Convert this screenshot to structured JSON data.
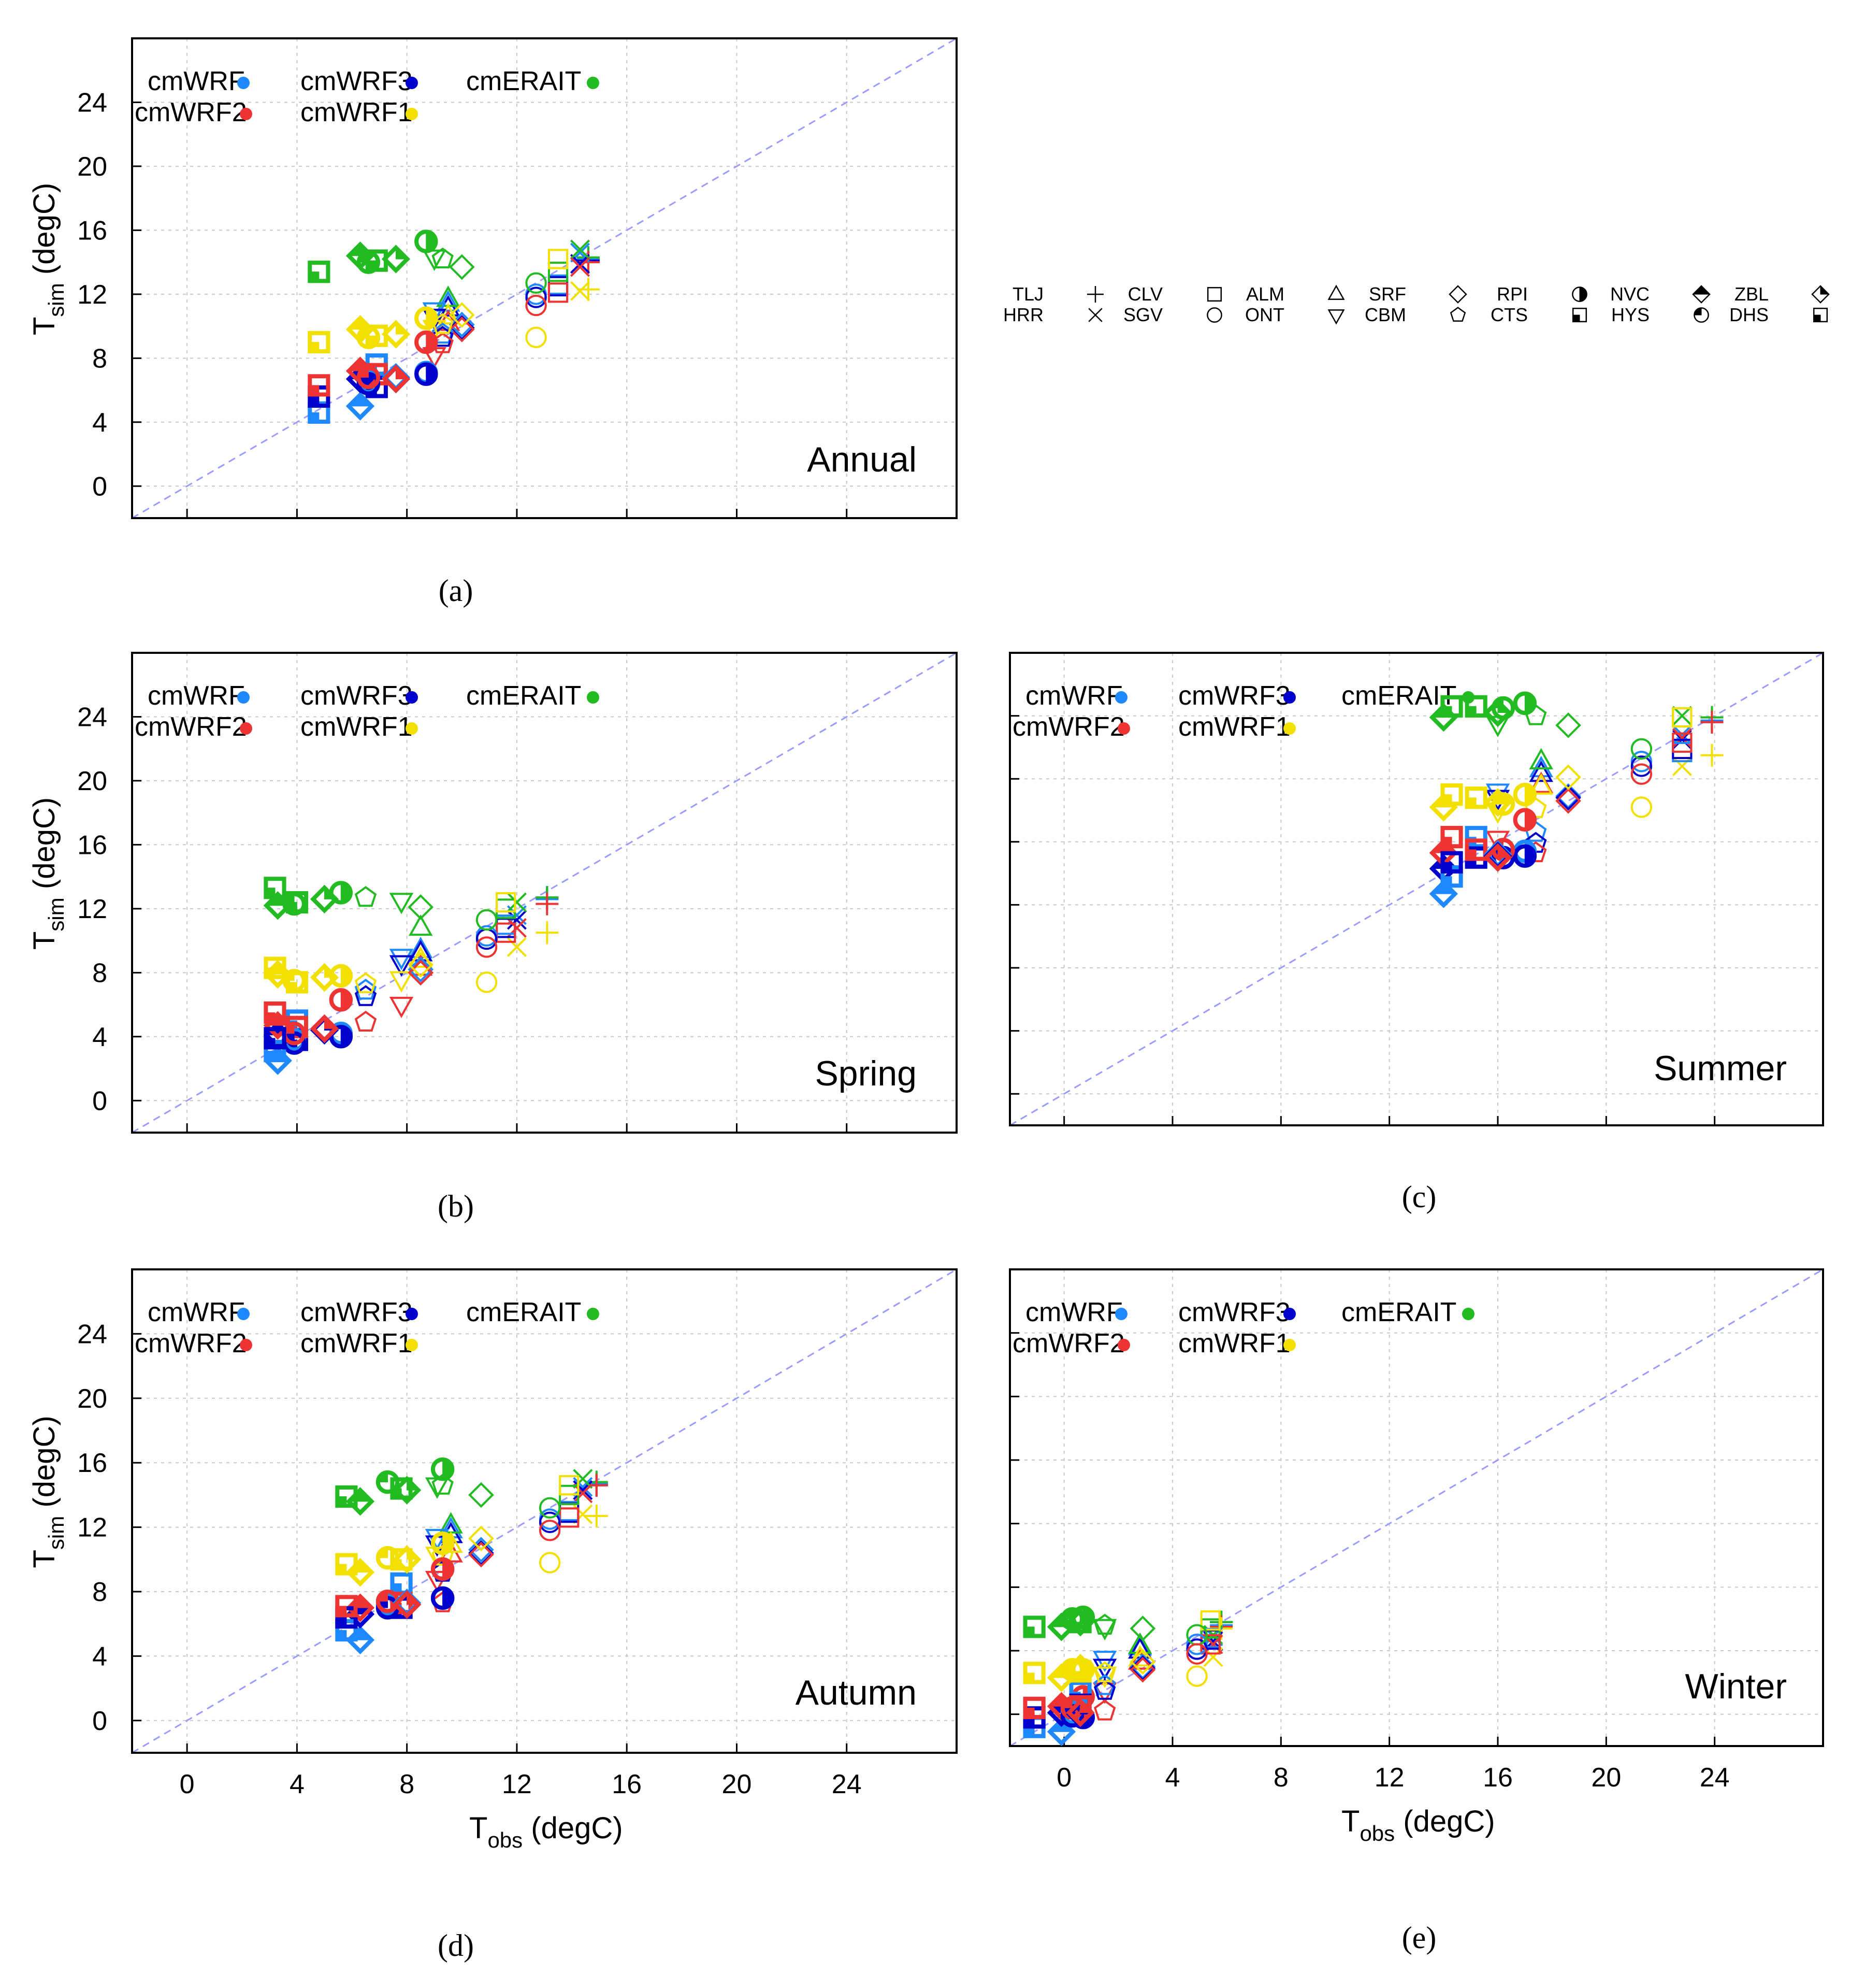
{
  "axes": {
    "x_label": "T",
    "x_label_sub": "obs",
    "x_label_unit": " (degC)",
    "y_label": "T",
    "y_label_sub": "sim",
    "y_label_unit": " (degC)",
    "xlim": [
      -2,
      28
    ],
    "ylim": [
      -2,
      28
    ],
    "ticks": [
      0,
      4,
      8,
      12,
      16,
      20,
      24
    ]
  },
  "models": [
    {
      "name": "cmWRF",
      "color": "#1e88ff"
    },
    {
      "name": "cmWRF3",
      "color": "#0000cc"
    },
    {
      "name": "cmERAIT",
      "color": "#22bb22"
    },
    {
      "name": "cmWRF2",
      "color": "#ee3333"
    },
    {
      "name": "cmWRF1",
      "color": "#f2e000"
    }
  ],
  "stations_key": [
    [
      "TLJ",
      "cross"
    ],
    [
      "CLV",
      "square"
    ],
    [
      "ALM",
      "triangle-up"
    ],
    [
      "SRF",
      "diamond"
    ],
    [
      "RPI",
      "circle-half"
    ],
    [
      "NVC",
      "diamond-half"
    ],
    [
      "ZBL",
      "diamond-quarter"
    ],
    [
      "HRR",
      "x"
    ],
    [
      "SGV",
      "circle"
    ],
    [
      "ONT",
      "triangle-down"
    ],
    [
      "CBM",
      "pentagon"
    ],
    [
      "CTS",
      "square-quarter"
    ],
    [
      "HYS",
      "circle-quarter"
    ],
    [
      "DHS",
      "square-quarter"
    ]
  ],
  "chart_data": [
    {
      "id": "a",
      "type": "scatter",
      "title": "Annual",
      "caption": "(a)",
      "stations": [
        {
          "name": "TLJ",
          "obs": 14.6,
          "sim": {
            "cmWRF": 14.2,
            "cmWRF3": 14.1,
            "cmERAIT": 14.3,
            "cmWRF2": 14.0,
            "cmWRF1": 12.3
          }
        },
        {
          "name": "HRR",
          "obs": 14.3,
          "sim": {
            "cmWRF": 14.6,
            "cmWRF3": 13.9,
            "cmERAIT": 14.8,
            "cmWRF2": 13.7,
            "cmWRF1": 12.2
          }
        },
        {
          "name": "CLV",
          "obs": 13.5,
          "sim": {
            "cmWRF": 12.6,
            "cmWRF3": 12.5,
            "cmERAIT": 13.4,
            "cmWRF2": 12.1,
            "cmWRF1": 14.2
          }
        },
        {
          "name": "SGV",
          "obs": 12.7,
          "sim": {
            "cmWRF": 12.0,
            "cmWRF3": 11.8,
            "cmERAIT": 12.7,
            "cmWRF2": 11.3,
            "cmWRF1": 9.3
          }
        },
        {
          "name": "ALM",
          "obs": 9.5,
          "sim": {
            "cmWRF": 11.4,
            "cmWRF3": 11.1,
            "cmERAIT": 11.7,
            "cmWRF2": 10.2,
            "cmWRF1": 10.6
          }
        },
        {
          "name": "ONT",
          "obs": 9.0,
          "sim": {
            "cmWRF": 11.0,
            "cmWRF3": 10.6,
            "cmERAIT": 14.3,
            "cmWRF2": 8.2,
            "cmWRF1": 9.9
          }
        },
        {
          "name": "SRF",
          "obs": 10.0,
          "sim": {
            "cmWRF": 10.1,
            "cmWRF3": 9.9,
            "cmERAIT": 13.7,
            "cmWRF2": 9.8,
            "cmWRF1": 10.7
          }
        },
        {
          "name": "CBM",
          "obs": 9.3,
          "sim": {
            "cmWRF": 9.5,
            "cmWRF3": 9.3,
            "cmERAIT": 14.2,
            "cmWRF2": 8.9,
            "cmWRF1": 10.1
          }
        },
        {
          "name": "RPI",
          "obs": 8.7,
          "sim": {
            "cmWRF": 7.1,
            "cmWRF3": 7.0,
            "cmERAIT": 15.3,
            "cmWRF2": 9.0,
            "cmWRF1": 10.5
          }
        },
        {
          "name": "CTS",
          "obs": 6.9,
          "sim": {
            "cmWRF": 7.6,
            "cmWRF3": 6.2,
            "cmERAIT": 14.1,
            "cmWRF2": 7.0,
            "cmWRF1": 9.4
          }
        },
        {
          "name": "NVC",
          "obs": 6.3,
          "sim": {
            "cmWRF": 5.0,
            "cmWRF3": 6.7,
            "cmERAIT": 14.4,
            "cmWRF2": 7.2,
            "cmWRF1": 9.8
          }
        },
        {
          "name": "HYS",
          "obs": 6.6,
          "sim": {
            "cmWRF": 6.5,
            "cmWRF3": 6.4,
            "cmERAIT": 14.0,
            "cmWRF2": 6.8,
            "cmWRF1": 9.3
          }
        },
        {
          "name": "ZBL",
          "obs": 7.6,
          "sim": {
            "cmWRF": 6.8,
            "cmWRF3": 6.7,
            "cmERAIT": 14.2,
            "cmWRF2": 6.7,
            "cmWRF1": 9.5
          }
        },
        {
          "name": "DHS",
          "obs": 4.8,
          "sim": {
            "cmWRF": 4.6,
            "cmWRF3": 5.6,
            "cmERAIT": 13.4,
            "cmWRF2": 6.3,
            "cmWRF1": 9.0
          }
        }
      ]
    },
    {
      "id": "b",
      "type": "scatter",
      "title": "Spring",
      "caption": "(b)",
      "stations": [
        {
          "name": "TLJ",
          "obs": 13.1,
          "sim": {
            "cmWRF": 12.6,
            "cmWRF3": 12.7,
            "cmERAIT": 12.7,
            "cmWRF2": 12.3,
            "cmWRF1": 10.5
          }
        },
        {
          "name": "HRR",
          "obs": 12.0,
          "sim": {
            "cmWRF": 11.6,
            "cmWRF3": 11.3,
            "cmERAIT": 12.4,
            "cmWRF2": 10.8,
            "cmWRF1": 9.6
          }
        },
        {
          "name": "CLV",
          "obs": 11.6,
          "sim": {
            "cmWRF": 11.0,
            "cmWRF3": 10.8,
            "cmERAIT": 12.0,
            "cmWRF2": 10.5,
            "cmWRF1": 12.4
          }
        },
        {
          "name": "SGV",
          "obs": 10.9,
          "sim": {
            "cmWRF": 10.3,
            "cmWRF3": 10.1,
            "cmERAIT": 11.3,
            "cmWRF2": 9.6,
            "cmWRF1": 7.4
          }
        },
        {
          "name": "ALM",
          "obs": 8.5,
          "sim": {
            "cmWRF": 9.4,
            "cmWRF3": 9.2,
            "cmERAIT": 10.8,
            "cmWRF2": 8.3,
            "cmWRF1": 8.8
          }
        },
        {
          "name": "ONT",
          "obs": 7.8,
          "sim": {
            "cmWRF": 9.0,
            "cmWRF3": 8.6,
            "cmERAIT": 12.5,
            "cmWRF2": 6.0,
            "cmWRF1": 7.6
          }
        },
        {
          "name": "SRF",
          "obs": 8.5,
          "sim": {
            "cmWRF": 8.2,
            "cmWRF3": 8.0,
            "cmERAIT": 12.1,
            "cmWRF2": 8.0,
            "cmWRF1": 8.5
          }
        },
        {
          "name": "CBM",
          "obs": 6.5,
          "sim": {
            "cmWRF": 6.9,
            "cmWRF3": 6.5,
            "cmERAIT": 12.7,
            "cmWRF2": 4.9,
            "cmWRF1": 7.3
          }
        },
        {
          "name": "RPI",
          "obs": 5.6,
          "sim": {
            "cmWRF": 4.2,
            "cmWRF3": 4.0,
            "cmERAIT": 13.0,
            "cmWRF2": 6.3,
            "cmWRF1": 7.8
          }
        },
        {
          "name": "CTS",
          "obs": 4.0,
          "sim": {
            "cmWRF": 5.0,
            "cmWRF3": 3.8,
            "cmERAIT": 12.4,
            "cmWRF2": 4.6,
            "cmWRF1": 7.4
          }
        },
        {
          "name": "NVC",
          "obs": 3.3,
          "sim": {
            "cmWRF": 2.5,
            "cmWRF3": 4.1,
            "cmERAIT": 12.2,
            "cmWRF2": 4.7,
            "cmWRF1": 7.9
          }
        },
        {
          "name": "HYS",
          "obs": 3.9,
          "sim": {
            "cmWRF": 3.8,
            "cmWRF3": 3.6,
            "cmERAIT": 12.3,
            "cmWRF2": 4.2,
            "cmWRF1": 7.5
          }
        },
        {
          "name": "ZBL",
          "obs": 5.0,
          "sim": {
            "cmWRF": 4.5,
            "cmWRF3": 4.4,
            "cmERAIT": 12.6,
            "cmWRF2": 4.5,
            "cmWRF1": 7.7
          }
        },
        {
          "name": "DHS",
          "obs": 3.2,
          "sim": {
            "cmWRF": 3.1,
            "cmWRF3": 3.9,
            "cmERAIT": 13.3,
            "cmWRF2": 5.5,
            "cmWRF1": 8.3
          }
        }
      ]
    },
    {
      "id": "c",
      "type": "scatter",
      "title": "Summer",
      "caption": "(c)",
      "stations": [
        {
          "name": "TLJ",
          "obs": 23.9,
          "sim": {
            "cmWRF": 23.7,
            "cmWRF3": 23.6,
            "cmERAIT": 23.9,
            "cmWRF2": 23.6,
            "cmWRF1": 21.5
          }
        },
        {
          "name": "HRR",
          "obs": 22.8,
          "sim": {
            "cmWRF": 22.8,
            "cmWRF3": 22.5,
            "cmERAIT": 24.0,
            "cmWRF2": 22.6,
            "cmWRF1": 20.8
          }
        },
        {
          "name": "CLV",
          "obs": 22.8,
          "sim": {
            "cmWRF": 21.7,
            "cmWRF3": 21.9,
            "cmERAIT": 23.9,
            "cmWRF2": 22.3,
            "cmWRF1": 23.9
          }
        },
        {
          "name": "SGV",
          "obs": 21.3,
          "sim": {
            "cmWRF": 21.1,
            "cmWRF3": 20.8,
            "cmERAIT": 21.9,
            "cmWRF2": 20.3,
            "cmWRF1": 18.2
          }
        },
        {
          "name": "ALM",
          "obs": 17.6,
          "sim": {
            "cmWRF": 20.6,
            "cmWRF3": 20.3,
            "cmERAIT": 21.1,
            "cmWRF2": 19.6,
            "cmWRF1": 19.5
          }
        },
        {
          "name": "ONT",
          "obs": 16.0,
          "sim": {
            "cmWRF": 19.2,
            "cmWRF3": 18.8,
            "cmERAIT": 23.5,
            "cmWRF2": 16.2,
            "cmWRF1": 18.0
          }
        },
        {
          "name": "SRF",
          "obs": 18.6,
          "sim": {
            "cmWRF": 18.9,
            "cmWRF3": 18.8,
            "cmERAIT": 23.4,
            "cmWRF2": 18.6,
            "cmWRF1": 20.1
          }
        },
        {
          "name": "CBM",
          "obs": 17.4,
          "sim": {
            "cmWRF": 16.6,
            "cmWRF3": 15.9,
            "cmERAIT": 24.0,
            "cmWRF2": 15.3,
            "cmWRF1": 18.1
          }
        },
        {
          "name": "RPI",
          "obs": 17.0,
          "sim": {
            "cmWRF": 15.4,
            "cmWRF3": 15.1,
            "cmERAIT": 24.8,
            "cmWRF2": 17.4,
            "cmWRF1": 19.0
          }
        },
        {
          "name": "CTS",
          "obs": 15.2,
          "sim": {
            "cmWRF": 16.3,
            "cmWRF3": 15.0,
            "cmERAIT": 24.6,
            "cmWRF2": 15.5,
            "cmWRF1": 18.8
          }
        },
        {
          "name": "NVC",
          "obs": 14.0,
          "sim": {
            "cmWRF": 12.7,
            "cmWRF3": 14.3,
            "cmERAIT": 23.9,
            "cmWRF2": 15.3,
            "cmWRF1": 18.2
          }
        },
        {
          "name": "HYS",
          "obs": 16.2,
          "sim": {
            "cmWRF": 15.5,
            "cmWRF3": 15.0,
            "cmERAIT": 24.5,
            "cmWRF2": 15.5,
            "cmWRF1": 18.4
          }
        },
        {
          "name": "ZBL",
          "obs": 16.0,
          "sim": {
            "cmWRF": 15.2,
            "cmWRF3": 15.1,
            "cmERAIT": 24.2,
            "cmWRF2": 15.0,
            "cmWRF1": 18.5
          }
        },
        {
          "name": "DHS",
          "obs": 14.3,
          "sim": {
            "cmWRF": 13.8,
            "cmWRF3": 14.7,
            "cmERAIT": 24.6,
            "cmWRF2": 16.3,
            "cmWRF1": 19.0
          }
        }
      ]
    },
    {
      "id": "d",
      "type": "scatter",
      "title": "Autumn",
      "caption": "(d)",
      "stations": [
        {
          "name": "TLJ",
          "obs": 14.9,
          "sim": {
            "cmWRF": 14.7,
            "cmWRF3": 14.6,
            "cmERAIT": 14.8,
            "cmWRF2": 14.6,
            "cmWRF1": 12.7
          }
        },
        {
          "name": "HRR",
          "obs": 14.4,
          "sim": {
            "cmWRF": 14.5,
            "cmWRF3": 14.3,
            "cmERAIT": 15.0,
            "cmWRF2": 14.1,
            "cmWRF1": 12.8
          }
        },
        {
          "name": "CLV",
          "obs": 13.9,
          "sim": {
            "cmWRF": 13.0,
            "cmWRF3": 12.9,
            "cmERAIT": 14.0,
            "cmWRF2": 12.6,
            "cmWRF1": 14.6
          }
        },
        {
          "name": "SGV",
          "obs": 13.2,
          "sim": {
            "cmWRF": 12.5,
            "cmWRF3": 12.3,
            "cmERAIT": 13.2,
            "cmWRF2": 11.8,
            "cmWRF1": 9.8
          }
        },
        {
          "name": "ALM",
          "obs": 9.6,
          "sim": {
            "cmWRF": 11.8,
            "cmWRF3": 11.5,
            "cmERAIT": 12.1,
            "cmWRF2": 10.3,
            "cmWRF1": 10.9
          }
        },
        {
          "name": "ONT",
          "obs": 9.1,
          "sim": {
            "cmWRF": 11.4,
            "cmWRF3": 11.0,
            "cmERAIT": 14.6,
            "cmWRF2": 8.8,
            "cmWRF1": 10.3
          }
        },
        {
          "name": "SRF",
          "obs": 10.7,
          "sim": {
            "cmWRF": 10.6,
            "cmWRF3": 10.4,
            "cmERAIT": 14.0,
            "cmWRF2": 10.3,
            "cmWRF1": 11.3
          }
        },
        {
          "name": "CBM",
          "obs": 9.3,
          "sim": {
            "cmWRF": 9.4,
            "cmWRF3": 9.2,
            "cmERAIT": 14.6,
            "cmWRF2": 7.3,
            "cmWRF1": 10.2
          }
        },
        {
          "name": "RPI",
          "obs": 9.3,
          "sim": {
            "cmWRF": 7.6,
            "cmWRF3": 7.6,
            "cmERAIT": 15.6,
            "cmWRF2": 9.4,
            "cmWRF1": 11.0
          }
        },
        {
          "name": "CTS",
          "obs": 7.8,
          "sim": {
            "cmWRF": 8.5,
            "cmWRF3": 7.0,
            "cmERAIT": 14.4,
            "cmWRF2": 7.3,
            "cmWRF1": 10.0
          }
        },
        {
          "name": "NVC",
          "obs": 6.3,
          "sim": {
            "cmWRF": 5.0,
            "cmWRF3": 6.6,
            "cmERAIT": 13.6,
            "cmWRF2": 7.0,
            "cmWRF1": 9.2
          }
        },
        {
          "name": "HYS",
          "obs": 7.3,
          "sim": {
            "cmWRF": 7.2,
            "cmWRF3": 7.0,
            "cmERAIT": 14.8,
            "cmWRF2": 7.4,
            "cmWRF1": 10.1
          }
        },
        {
          "name": "ZBL",
          "obs": 8.0,
          "sim": {
            "cmWRF": 7.3,
            "cmWRF3": 7.2,
            "cmERAIT": 14.3,
            "cmWRF2": 7.2,
            "cmWRF1": 10.0
          }
        },
        {
          "name": "DHS",
          "obs": 5.8,
          "sim": {
            "cmWRF": 5.6,
            "cmWRF3": 6.4,
            "cmERAIT": 13.9,
            "cmWRF2": 7.1,
            "cmWRF1": 9.7
          }
        }
      ]
    },
    {
      "id": "e",
      "type": "scatter",
      "title": "Winter",
      "caption": "(e)",
      "stations": [
        {
          "name": "TLJ",
          "obs": 5.8,
          "sim": {
            "cmWRF": 5.6,
            "cmWRF3": 5.8,
            "cmERAIT": 5.8,
            "cmWRF2": 5.5,
            "cmWRF1": 5.4
          }
        },
        {
          "name": "HRR",
          "obs": 5.5,
          "sim": {
            "cmWRF": 4.9,
            "cmWRF3": 4.6,
            "cmERAIT": 5.0,
            "cmWRF2": 4.4,
            "cmWRF1": 3.6
          }
        },
        {
          "name": "CLV",
          "obs": 5.4,
          "sim": {
            "cmWRF": 4.8,
            "cmWRF3": 4.7,
            "cmERAIT": 5.4,
            "cmWRF2": 4.4,
            "cmWRF1": 5.9
          }
        },
        {
          "name": "SGV",
          "obs": 4.9,
          "sim": {
            "cmWRF": 4.4,
            "cmWRF3": 4.1,
            "cmERAIT": 5.0,
            "cmWRF2": 3.8,
            "cmWRF1": 2.4
          }
        },
        {
          "name": "ALM",
          "obs": 2.8,
          "sim": {
            "cmWRF": 4.2,
            "cmWRF3": 4.0,
            "cmERAIT": 4.3,
            "cmWRF2": 3.3,
            "cmWRF1": 3.5
          }
        },
        {
          "name": "ONT",
          "obs": 1.5,
          "sim": {
            "cmWRF": 3.5,
            "cmWRF3": 3.0,
            "cmERAIT": 5.5,
            "cmWRF2": 1.5,
            "cmWRF1": 2.5
          }
        },
        {
          "name": "SRF",
          "obs": 2.9,
          "sim": {
            "cmWRF": 3.0,
            "cmWRF3": 2.9,
            "cmERAIT": 5.4,
            "cmWRF2": 2.8,
            "cmWRF1": 3.3
          }
        },
        {
          "name": "CBM",
          "obs": 1.5,
          "sim": {
            "cmWRF": 1.8,
            "cmWRF3": 1.5,
            "cmERAIT": 5.6,
            "cmWRF2": 0.2,
            "cmWRF1": 2.6
          }
        },
        {
          "name": "RPI",
          "obs": 0.7,
          "sim": {
            "cmWRF": -0.2,
            "cmWRF3": -0.2,
            "cmERAIT": 6.1,
            "cmWRF2": 1.1,
            "cmWRF1": 2.8
          }
        },
        {
          "name": "CTS",
          "obs": 0.6,
          "sim": {
            "cmWRF": 1.4,
            "cmWRF3": 0.6,
            "cmERAIT": 5.8,
            "cmWRF2": 0.5,
            "cmWRF1": 2.7
          }
        },
        {
          "name": "NVC",
          "obs": -0.1,
          "sim": {
            "cmWRF": -1.1,
            "cmWRF3": 0.1,
            "cmERAIT": 5.5,
            "cmWRF2": 0.5,
            "cmWRF1": 2.3
          }
        },
        {
          "name": "HYS",
          "obs": 0.3,
          "sim": {
            "cmWRF": 0.1,
            "cmWRF3": -0.1,
            "cmERAIT": 6.0,
            "cmWRF2": 0.4,
            "cmWRF1": 2.8
          }
        },
        {
          "name": "ZBL",
          "obs": 0.6,
          "sim": {
            "cmWRF": 0.0,
            "cmWRF3": 0.0,
            "cmERAIT": 5.8,
            "cmWRF2": 0.1,
            "cmWRF1": 2.9
          }
        },
        {
          "name": "DHS",
          "obs": -1.1,
          "sim": {
            "cmWRF": -0.8,
            "cmWRF3": -0.2,
            "cmERAIT": 5.5,
            "cmWRF2": 0.4,
            "cmWRF1": 2.6
          }
        }
      ]
    }
  ]
}
